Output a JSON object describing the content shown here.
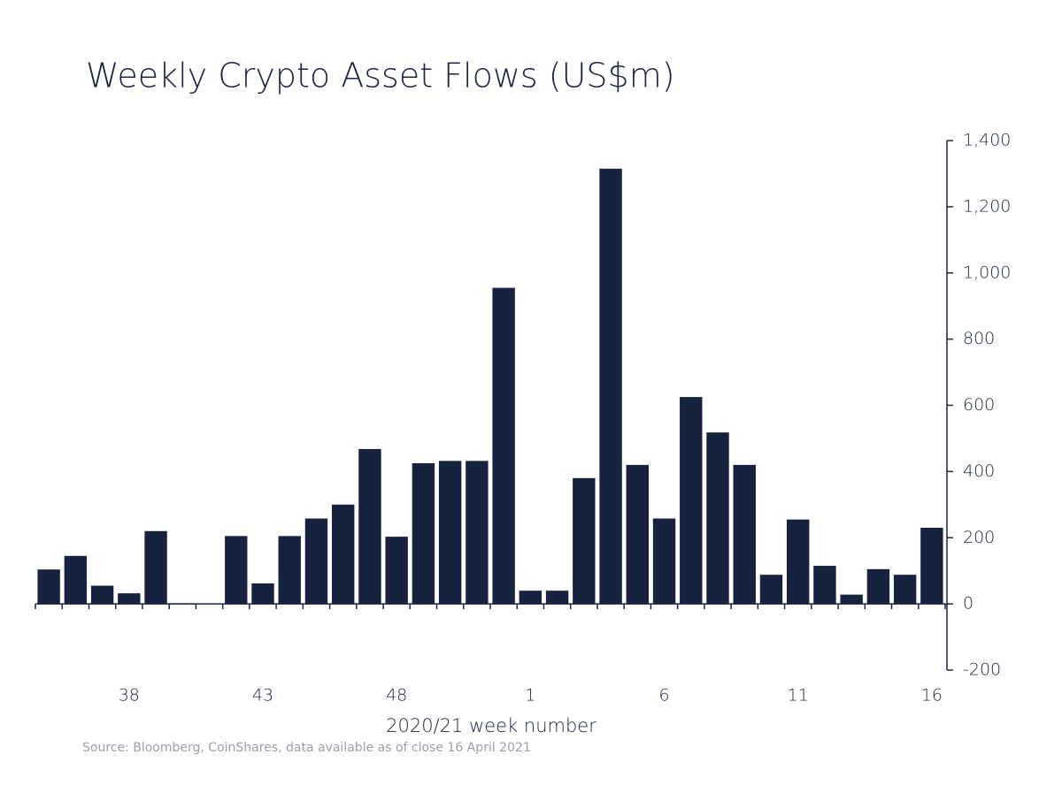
{
  "chart_data": {
    "type": "bar",
    "title": "Weekly Crypto Asset Flows (US$m)",
    "x_label": "2020/21 week number",
    "source": "Source: Bloomberg, CoinShares, data available as of close 16 April 2021",
    "categories": [
      null,
      null,
      null,
      "38",
      null,
      null,
      null,
      null,
      "43",
      null,
      null,
      null,
      null,
      "48",
      null,
      null,
      null,
      null,
      "1",
      null,
      null,
      null,
      null,
      "6",
      null,
      null,
      null,
      null,
      "11",
      null,
      null,
      null,
      null,
      "16"
    ],
    "values": [
      104,
      145,
      55,
      32,
      220,
      2,
      1,
      205,
      62,
      205,
      258,
      300,
      468,
      203,
      425,
      432,
      432,
      955,
      40,
      40,
      380,
      1315,
      420,
      258,
      625,
      518,
      420,
      88,
      255,
      115,
      28,
      105,
      88,
      230
    ],
    "color": "#17223f",
    "ylim": [
      -200,
      1400
    ],
    "yticks": [
      {
        "value": -200,
        "label": "-200"
      },
      0,
      200,
      400,
      600,
      800,
      {
        "value": 1000,
        "label": "1,000"
      },
      {
        "value": 1200,
        "label": "1,200"
      },
      {
        "value": 1400,
        "label": "1,400"
      }
    ],
    "grid": false
  }
}
